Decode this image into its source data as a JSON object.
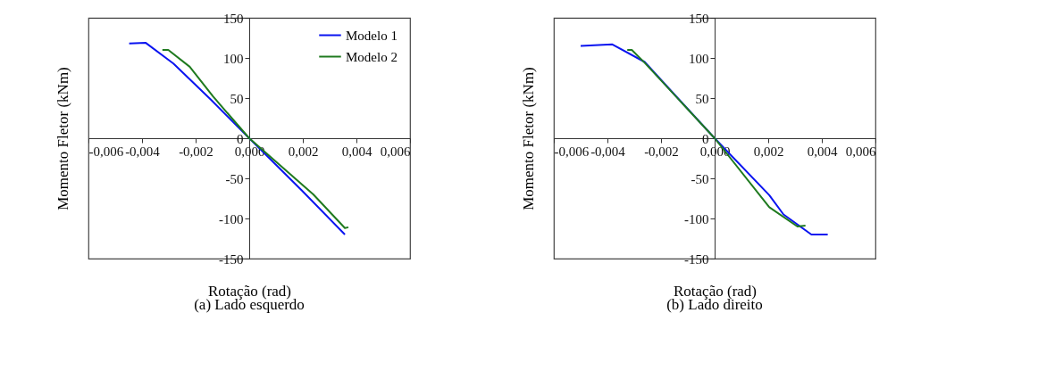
{
  "chart_data": [
    {
      "type": "line",
      "title": "(a)  Lado esquerdo",
      "xlabel": "Rotação (rad)",
      "ylabel": "Momento Fletor (kNm)",
      "xlim": [
        -0.006,
        0.006
      ],
      "ylim": [
        -150,
        150
      ],
      "xticks": [
        {
          "value": -0.006,
          "label": "-0,006"
        },
        {
          "value": -0.004,
          "label": "-0,004"
        },
        {
          "value": -0.002,
          "label": "-0,002"
        },
        {
          "value": 0,
          "label": "0,000"
        },
        {
          "value": 0.002,
          "label": "0,002"
        },
        {
          "value": 0.004,
          "label": "0,004"
        },
        {
          "value": 0.006,
          "label": "0,006"
        }
      ],
      "yticks": [
        -150,
        -100,
        -50,
        0,
        50,
        100,
        150
      ],
      "grid": false,
      "legend": "top right",
      "series": [
        {
          "name": "Modelo 1",
          "color": "#0a14f0",
          "x": [
            -0.00448,
            -0.00387,
            -0.00283,
            -0.00143,
            0,
            0.00196,
            0.00357
          ],
          "values": [
            118,
            119,
            93,
            48,
            0,
            -65,
            -120
          ]
        },
        {
          "name": "Modelo 2",
          "color": "#1f7a1f",
          "x": [
            -0.00324,
            -0.00302,
            -0.00222,
            -0.00135,
            0,
            0.00239,
            0.00357,
            0.0037
          ],
          "values": [
            110,
            110,
            89,
            52,
            0,
            -70,
            -112,
            -111
          ]
        }
      ]
    },
    {
      "type": "line",
      "title": "(b)  Lado direito",
      "xlabel": "Rotação (rad)",
      "ylabel": "Momento Fletor (kNm)",
      "xlim": [
        -0.006,
        0.006
      ],
      "ylim": [
        -150,
        150
      ],
      "xticks": [
        {
          "value": -0.006,
          "label": "-0,006"
        },
        {
          "value": -0.004,
          "label": "-0,004"
        },
        {
          "value": -0.002,
          "label": "-0,002"
        },
        {
          "value": 0,
          "label": "0,000"
        },
        {
          "value": 0.002,
          "label": "0,002"
        },
        {
          "value": 0.004,
          "label": "0,004"
        },
        {
          "value": 0.006,
          "label": "0,006"
        }
      ],
      "yticks": [
        -150,
        -100,
        -50,
        0,
        50,
        100,
        150
      ],
      "grid": false,
      "legend": "top right",
      "series": [
        {
          "name": "Modelo 1",
          "color": "#0a14f0",
          "x": [
            -0.005,
            -0.00383,
            -0.00261,
            0,
            0.00204,
            0.00257,
            0.00361,
            0.00422
          ],
          "values": [
            115,
            117,
            95,
            0,
            -71,
            -95,
            -120,
            -120
          ]
        },
        {
          "name": "Modelo 2",
          "color": "#1f7a1f",
          "x": [
            -0.00326,
            -0.00309,
            -0.00261,
            0,
            0.00204,
            0.00309,
            0.00339
          ],
          "values": [
            110,
            110,
            94,
            0,
            -86,
            -110,
            -109
          ]
        }
      ]
    }
  ]
}
